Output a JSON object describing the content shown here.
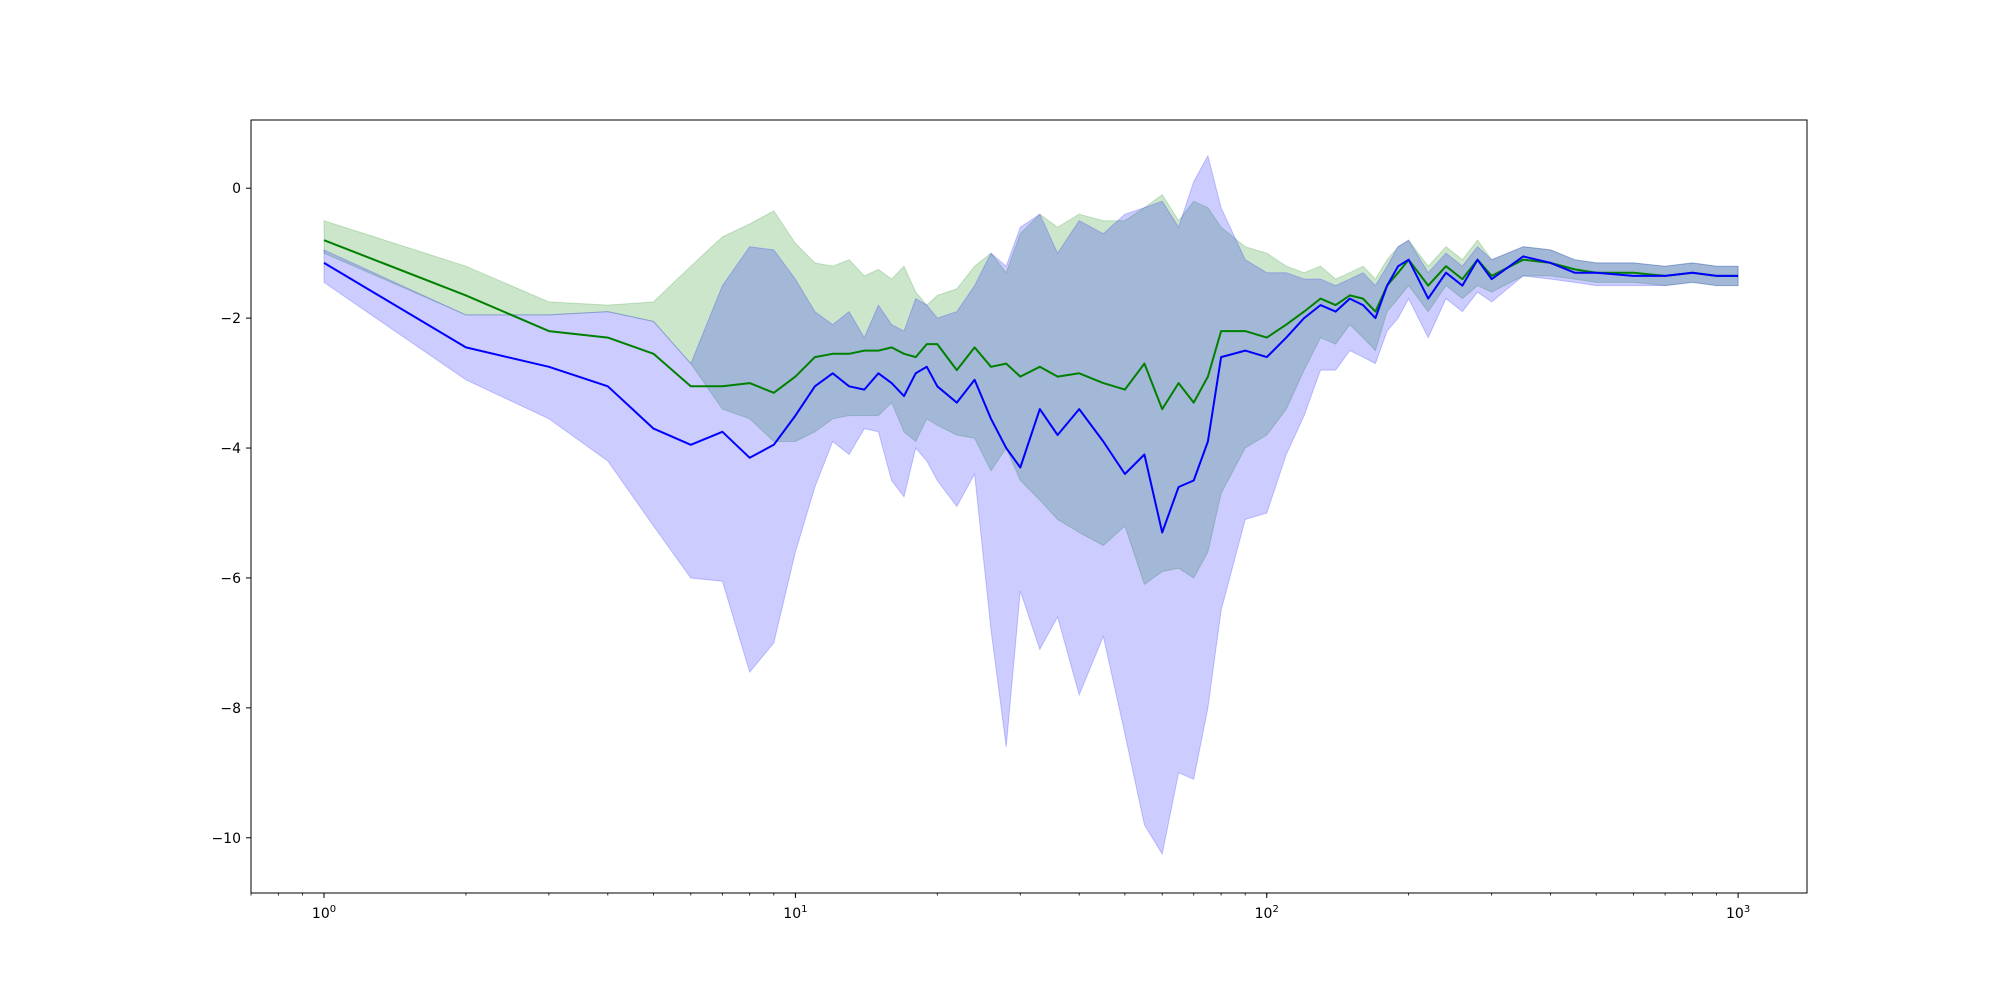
{
  "chart_data": {
    "type": "line",
    "title": "",
    "xlabel": "",
    "ylabel": "",
    "xscale": "log",
    "xlim": [
      0.7,
      1400
    ],
    "ylim": [
      -10.85,
      1.05
    ],
    "grid": false,
    "x_ticks": [
      {
        "value": 1,
        "base": "10",
        "exp": "0"
      },
      {
        "value": 10,
        "base": "10",
        "exp": "1"
      },
      {
        "value": 100,
        "base": "10",
        "exp": "2"
      },
      {
        "value": 1000,
        "base": "10",
        "exp": "3"
      }
    ],
    "y_ticks": [
      {
        "value": 0,
        "label": "0"
      },
      {
        "value": -2,
        "label": "−2"
      },
      {
        "value": -4,
        "label": "−4"
      },
      {
        "value": -6,
        "label": "−6"
      },
      {
        "value": -8,
        "label": "−8"
      },
      {
        "value": -10,
        "label": "−10"
      }
    ],
    "series": [
      {
        "color": "#008000",
        "band_color": "#008000",
        "x": [
          1,
          2,
          3,
          4,
          5,
          6,
          7,
          8,
          9,
          10,
          11,
          12,
          13,
          14,
          15,
          16,
          17,
          18,
          19,
          20,
          22,
          24,
          26,
          28,
          30,
          33,
          36,
          40,
          45,
          50,
          55,
          60,
          65,
          70,
          75,
          80,
          90,
          100,
          110,
          120,
          130,
          140,
          150,
          160,
          170,
          180,
          190,
          200,
          220,
          240,
          260,
          280,
          300,
          350,
          400,
          450,
          500,
          600,
          700,
          800,
          900,
          1000
        ],
        "mean": [
          -0.8,
          -1.65,
          -2.2,
          -2.3,
          -2.55,
          -3.05,
          -3.05,
          -3.0,
          -3.15,
          -2.9,
          -2.6,
          -2.55,
          -2.55,
          -2.5,
          -2.5,
          -2.45,
          -2.55,
          -2.6,
          -2.4,
          -2.4,
          -2.8,
          -2.45,
          -2.75,
          -2.7,
          -2.9,
          -2.75,
          -2.9,
          -2.85,
          -3.0,
          -3.1,
          -2.7,
          -3.4,
          -3.0,
          -3.3,
          -2.9,
          -2.2,
          -2.2,
          -2.3,
          -2.1,
          -1.9,
          -1.7,
          -1.8,
          -1.65,
          -1.7,
          -1.9,
          -1.5,
          -1.3,
          -1.1,
          -1.5,
          -1.2,
          -1.4,
          -1.1,
          -1.35,
          -1.1,
          -1.15,
          -1.25,
          -1.3,
          -1.3,
          -1.35,
          -1.3,
          -1.35,
          -1.35
        ],
        "upper": [
          -0.5,
          -1.2,
          -1.75,
          -1.8,
          -1.75,
          -1.2,
          -0.75,
          -0.55,
          -0.35,
          -0.85,
          -1.15,
          -1.2,
          -1.1,
          -1.35,
          -1.25,
          -1.4,
          -1.2,
          -1.6,
          -1.8,
          -1.65,
          -1.55,
          -1.2,
          -1.0,
          -1.3,
          -0.7,
          -0.4,
          -0.6,
          -0.4,
          -0.5,
          -0.5,
          -0.3,
          -0.1,
          -0.5,
          -0.2,
          -0.3,
          -0.6,
          -0.9,
          -1.0,
          -1.2,
          -1.3,
          -1.2,
          -1.4,
          -1.3,
          -1.2,
          -1.4,
          -1.1,
          -0.9,
          -0.8,
          -1.2,
          -0.9,
          -1.1,
          -0.8,
          -1.1,
          -0.9,
          -0.95,
          -1.1,
          -1.15,
          -1.15,
          -1.2,
          -1.15,
          -1.2,
          -1.2
        ],
        "lower": [
          -1.0,
          -1.95,
          -1.95,
          -1.9,
          -2.05,
          -2.7,
          -3.4,
          -3.55,
          -3.9,
          -3.9,
          -3.75,
          -3.55,
          -3.5,
          -3.5,
          -3.5,
          -3.3,
          -3.75,
          -3.9,
          -3.55,
          -3.65,
          -3.8,
          -3.85,
          -4.35,
          -4.0,
          -4.5,
          -4.8,
          -5.1,
          -5.3,
          -5.5,
          -5.2,
          -6.1,
          -5.9,
          -5.85,
          -6.0,
          -5.6,
          -4.7,
          -4.0,
          -3.8,
          -3.4,
          -2.8,
          -2.3,
          -2.4,
          -2.1,
          -2.3,
          -2.5,
          -1.9,
          -1.7,
          -1.5,
          -1.9,
          -1.5,
          -1.7,
          -1.5,
          -1.6,
          -1.35,
          -1.35,
          -1.4,
          -1.45,
          -1.45,
          -1.5,
          -1.45,
          -1.5,
          -1.5
        ]
      },
      {
        "color": "#0000ff",
        "band_color": "#0000ff",
        "x": [
          1,
          2,
          3,
          4,
          5,
          6,
          7,
          8,
          9,
          10,
          11,
          12,
          13,
          14,
          15,
          16,
          17,
          18,
          19,
          20,
          22,
          24,
          26,
          28,
          30,
          33,
          36,
          40,
          45,
          50,
          55,
          60,
          65,
          70,
          75,
          80,
          90,
          100,
          110,
          120,
          130,
          140,
          150,
          160,
          170,
          180,
          190,
          200,
          220,
          240,
          260,
          280,
          300,
          350,
          400,
          450,
          500,
          600,
          700,
          800,
          900,
          1000
        ],
        "mean": [
          -1.15,
          -2.45,
          -2.75,
          -3.05,
          -3.7,
          -3.95,
          -3.75,
          -4.15,
          -3.95,
          -3.5,
          -3.05,
          -2.85,
          -3.05,
          -3.1,
          -2.85,
          -3.0,
          -3.2,
          -2.85,
          -2.75,
          -3.05,
          -3.3,
          -2.95,
          -3.55,
          -4.0,
          -4.3,
          -3.4,
          -3.8,
          -3.4,
          -3.9,
          -4.4,
          -4.1,
          -5.3,
          -4.6,
          -4.5,
          -3.9,
          -2.6,
          -2.5,
          -2.6,
          -2.3,
          -2.0,
          -1.8,
          -1.9,
          -1.7,
          -1.8,
          -2.0,
          -1.5,
          -1.2,
          -1.1,
          -1.7,
          -1.3,
          -1.5,
          -1.1,
          -1.4,
          -1.05,
          -1.15,
          -1.3,
          -1.3,
          -1.35,
          -1.35,
          -1.3,
          -1.35,
          -1.35
        ],
        "upper": [
          -0.95,
          -1.95,
          -1.95,
          -1.9,
          -2.05,
          -2.7,
          -1.5,
          -0.9,
          -0.95,
          -1.4,
          -1.9,
          -2.1,
          -1.9,
          -2.3,
          -1.8,
          -2.1,
          -2.2,
          -1.7,
          -1.8,
          -2.0,
          -1.9,
          -1.5,
          -1.0,
          -1.2,
          -0.6,
          -0.4,
          -1.0,
          -0.5,
          -0.7,
          -0.4,
          -0.3,
          -0.2,
          -0.6,
          0.1,
          0.5,
          -0.3,
          -1.1,
          -1.3,
          -1.3,
          -1.4,
          -1.4,
          -1.5,
          -1.4,
          -1.3,
          -1.5,
          -1.2,
          -0.9,
          -0.8,
          -1.3,
          -1.0,
          -1.2,
          -0.9,
          -1.1,
          -0.9,
          -0.95,
          -1.1,
          -1.15,
          -1.15,
          -1.2,
          -1.15,
          -1.2,
          -1.2
        ],
        "lower": [
          -1.45,
          -2.95,
          -3.55,
          -4.2,
          -5.2,
          -6.0,
          -6.05,
          -7.45,
          -7.0,
          -5.6,
          -4.6,
          -3.9,
          -4.1,
          -3.7,
          -3.75,
          -4.5,
          -4.75,
          -4.0,
          -4.2,
          -4.5,
          -4.9,
          -4.4,
          -6.8,
          -8.6,
          -6.2,
          -7.1,
          -6.6,
          -7.8,
          -6.9,
          -8.4,
          -9.8,
          -10.25,
          -9.0,
          -9.1,
          -8.0,
          -6.5,
          -5.1,
          -5.0,
          -4.1,
          -3.5,
          -2.8,
          -2.8,
          -2.5,
          -2.6,
          -2.7,
          -2.2,
          -2.0,
          -1.7,
          -2.3,
          -1.7,
          -1.9,
          -1.6,
          -1.75,
          -1.35,
          -1.4,
          -1.45,
          -1.5,
          -1.5,
          -1.5,
          -1.45,
          -1.5,
          -1.5
        ]
      }
    ]
  }
}
